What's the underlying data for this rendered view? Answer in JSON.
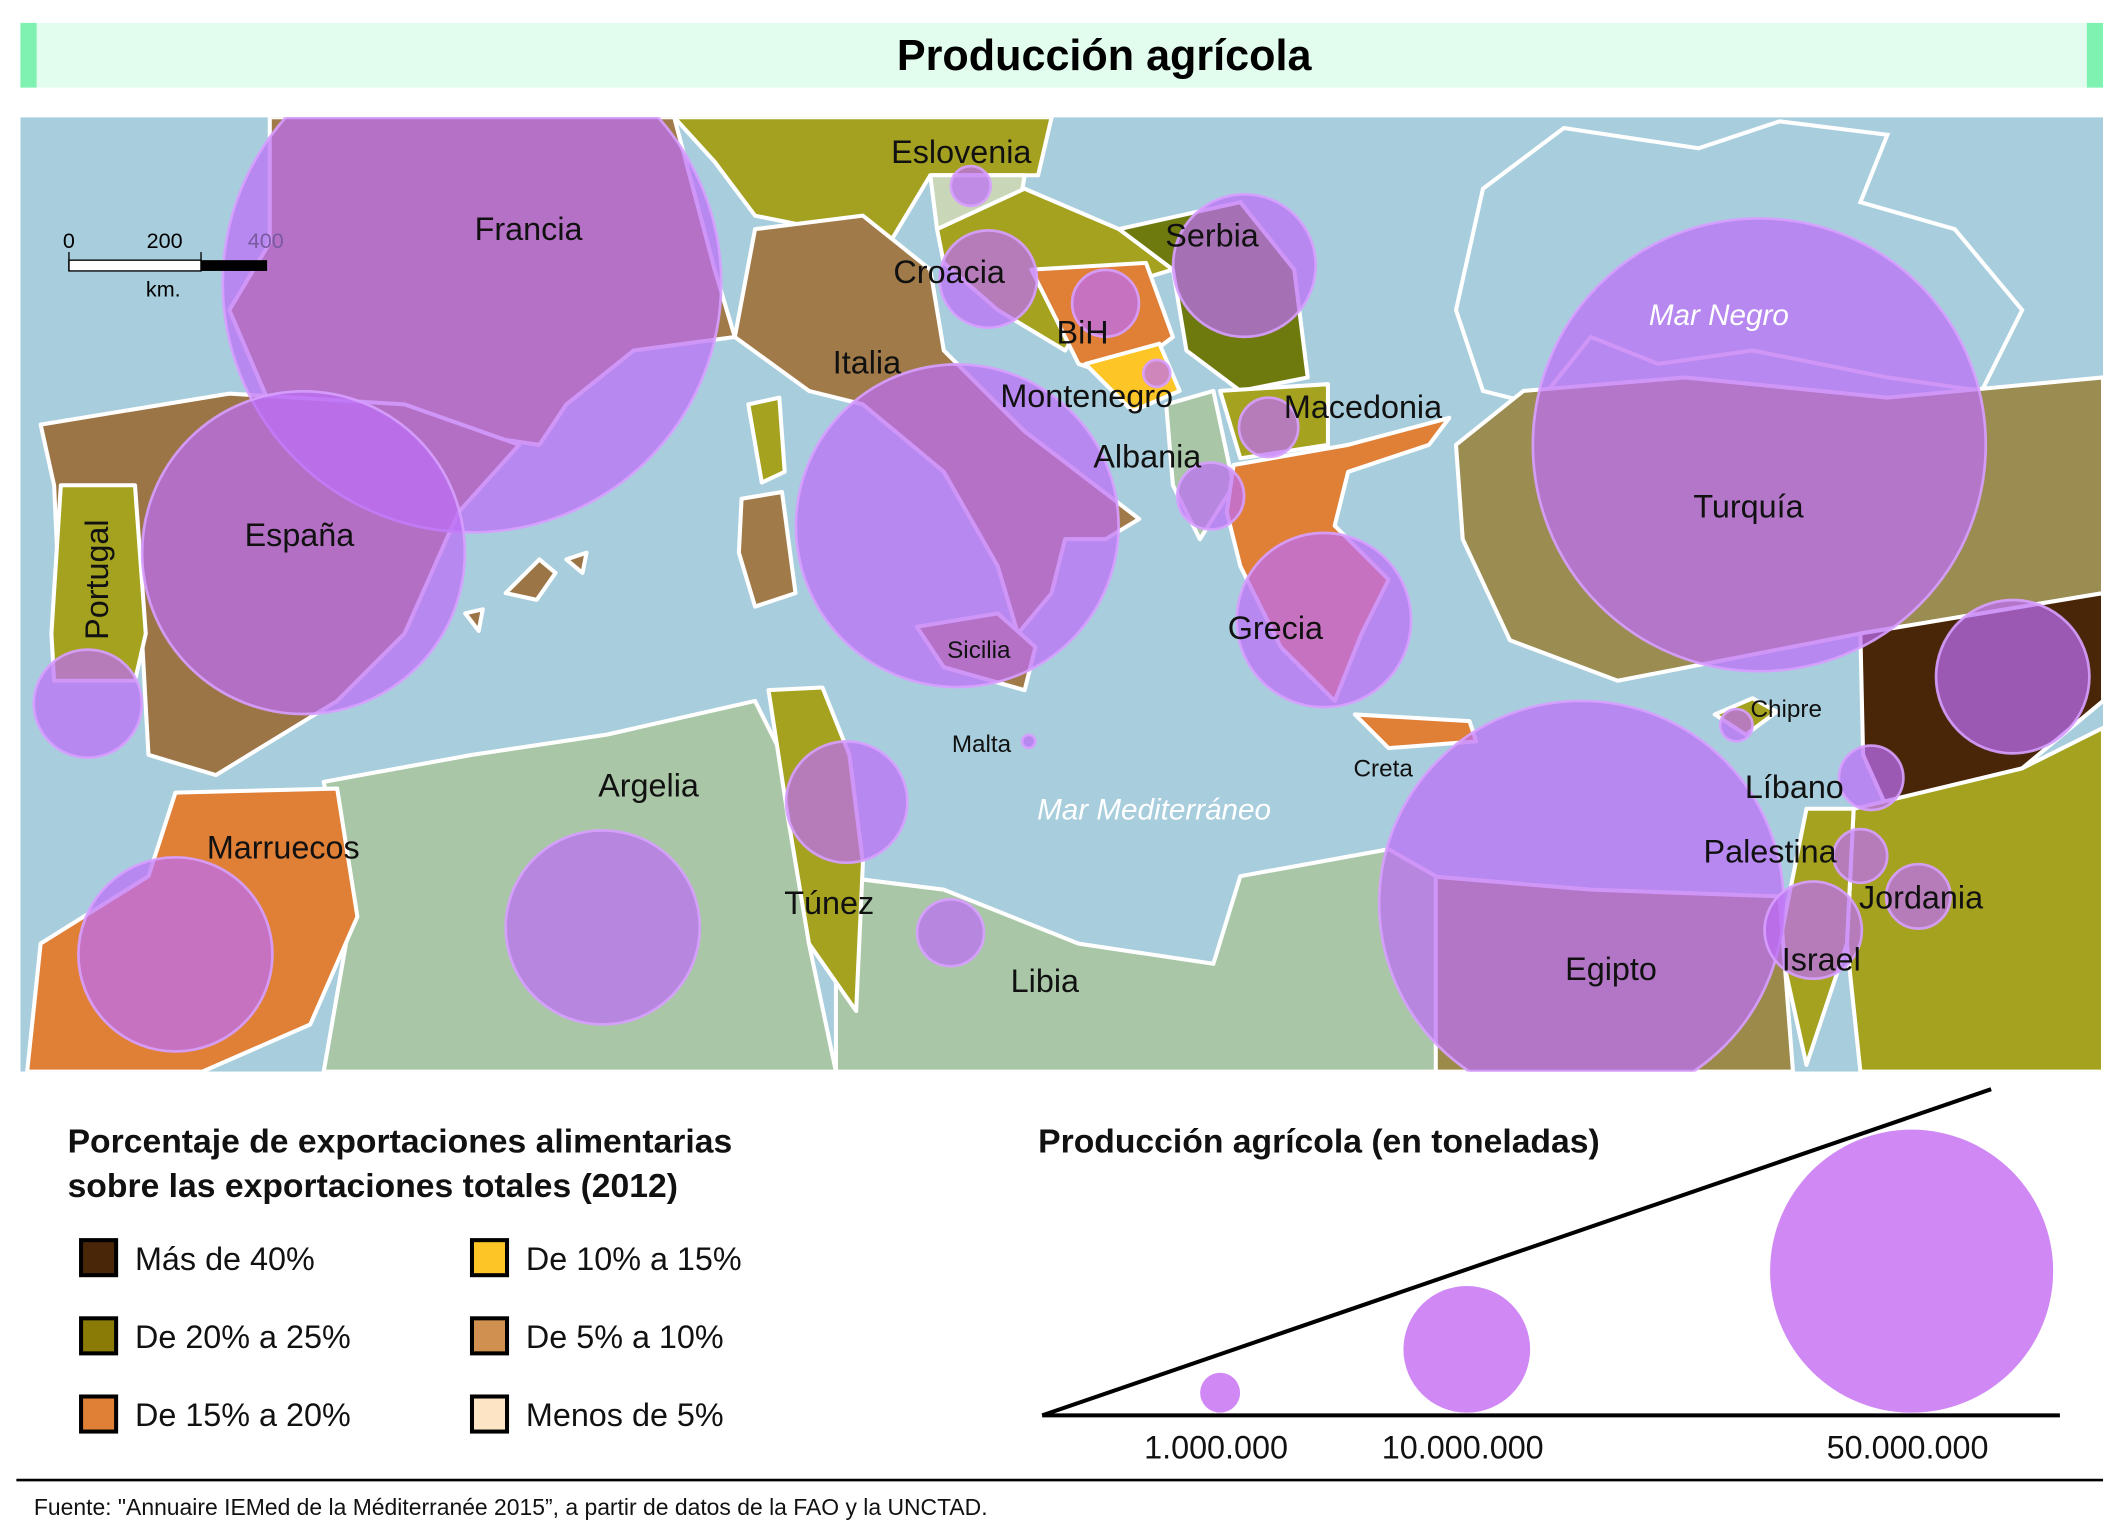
{
  "title": "Producción agrícola",
  "scale_bar": {
    "ticks": [
      "0",
      "200",
      "400"
    ],
    "unit": "km."
  },
  "map": {
    "labels": {
      "francia": "Francia",
      "espana": "España",
      "portugal": "Portugal",
      "italia": "Italia",
      "eslovenia": "Eslovenia",
      "croacia": "Croacia",
      "bih": "BiH",
      "serbia": "Serbia",
      "montenegro": "Montenegro",
      "macedonia": "Macedonia",
      "albania": "Albania",
      "grecia": "Grecia",
      "turquia": "Turquía",
      "egipto": "Egipto",
      "chipre": "Chipre",
      "libano": "Líbano",
      "palestina": "Palestina",
      "jordania": "Jordania",
      "israel": "Israel",
      "malta": "Malta",
      "argelia": "Argelia",
      "tunez": "Túnez",
      "libia": "Libia",
      "marruecos": "Marruecos",
      "sicilia": "Sicilia",
      "creta": "Creta"
    },
    "seas": {
      "mediterraneo": "Mar Mediterráneo",
      "negro": "Mar Negro"
    },
    "production_tonnes": {
      "francia": 155000000,
      "espana": 65000000,
      "portugal": 7300000,
      "italia": 65000000,
      "eslovenia": 1000000,
      "croacia": 5900000,
      "bih": 2800000,
      "serbia": 12700000,
      "montenegro": 450000,
      "macedonia": 2200000,
      "albania": 2800000,
      "grecia": 19000000,
      "turquia": 128000000,
      "egipto": 102000000,
      "siria": 14700000,
      "libano": 2600000,
      "palestina": 1800000,
      "jordania": 2600000,
      "israel": 5900000,
      "chipre": 650000,
      "malta": 110000,
      "argelia": 23500000,
      "tunez": 9200000,
      "libia": 2800000,
      "marruecos": 23500000
    }
  },
  "legend_exports": {
    "title_line1": "Porcentaje de exportaciones alimentarias",
    "title_line2": "sobre las exportaciones totales (2012)",
    "items": [
      {
        "label": "Más de 40%",
        "color": "#4a2608"
      },
      {
        "label": "De 10% a 15%",
        "color": "#fdc525"
      },
      {
        "label": "De 20% a 25%",
        "color": "#8a7a06"
      },
      {
        "label": "De 5% a 10%",
        "color": "#d09050"
      },
      {
        "label": "De 15% a 20%",
        "color": "#e08036"
      },
      {
        "label": "Menos de 5%",
        "color": "#fde4c4"
      }
    ]
  },
  "legend_production": {
    "title": "Producción agrícola (en toneladas)",
    "values": [
      1000000,
      10000000,
      50000000
    ],
    "labels": [
      "1.000.000",
      "10.000.000",
      "50.000.000"
    ]
  },
  "source": "Fuente: \"Annuaire IEMed de la Méditerranée 2015”, a partir de datos de la FAO y la UNCTAD."
}
